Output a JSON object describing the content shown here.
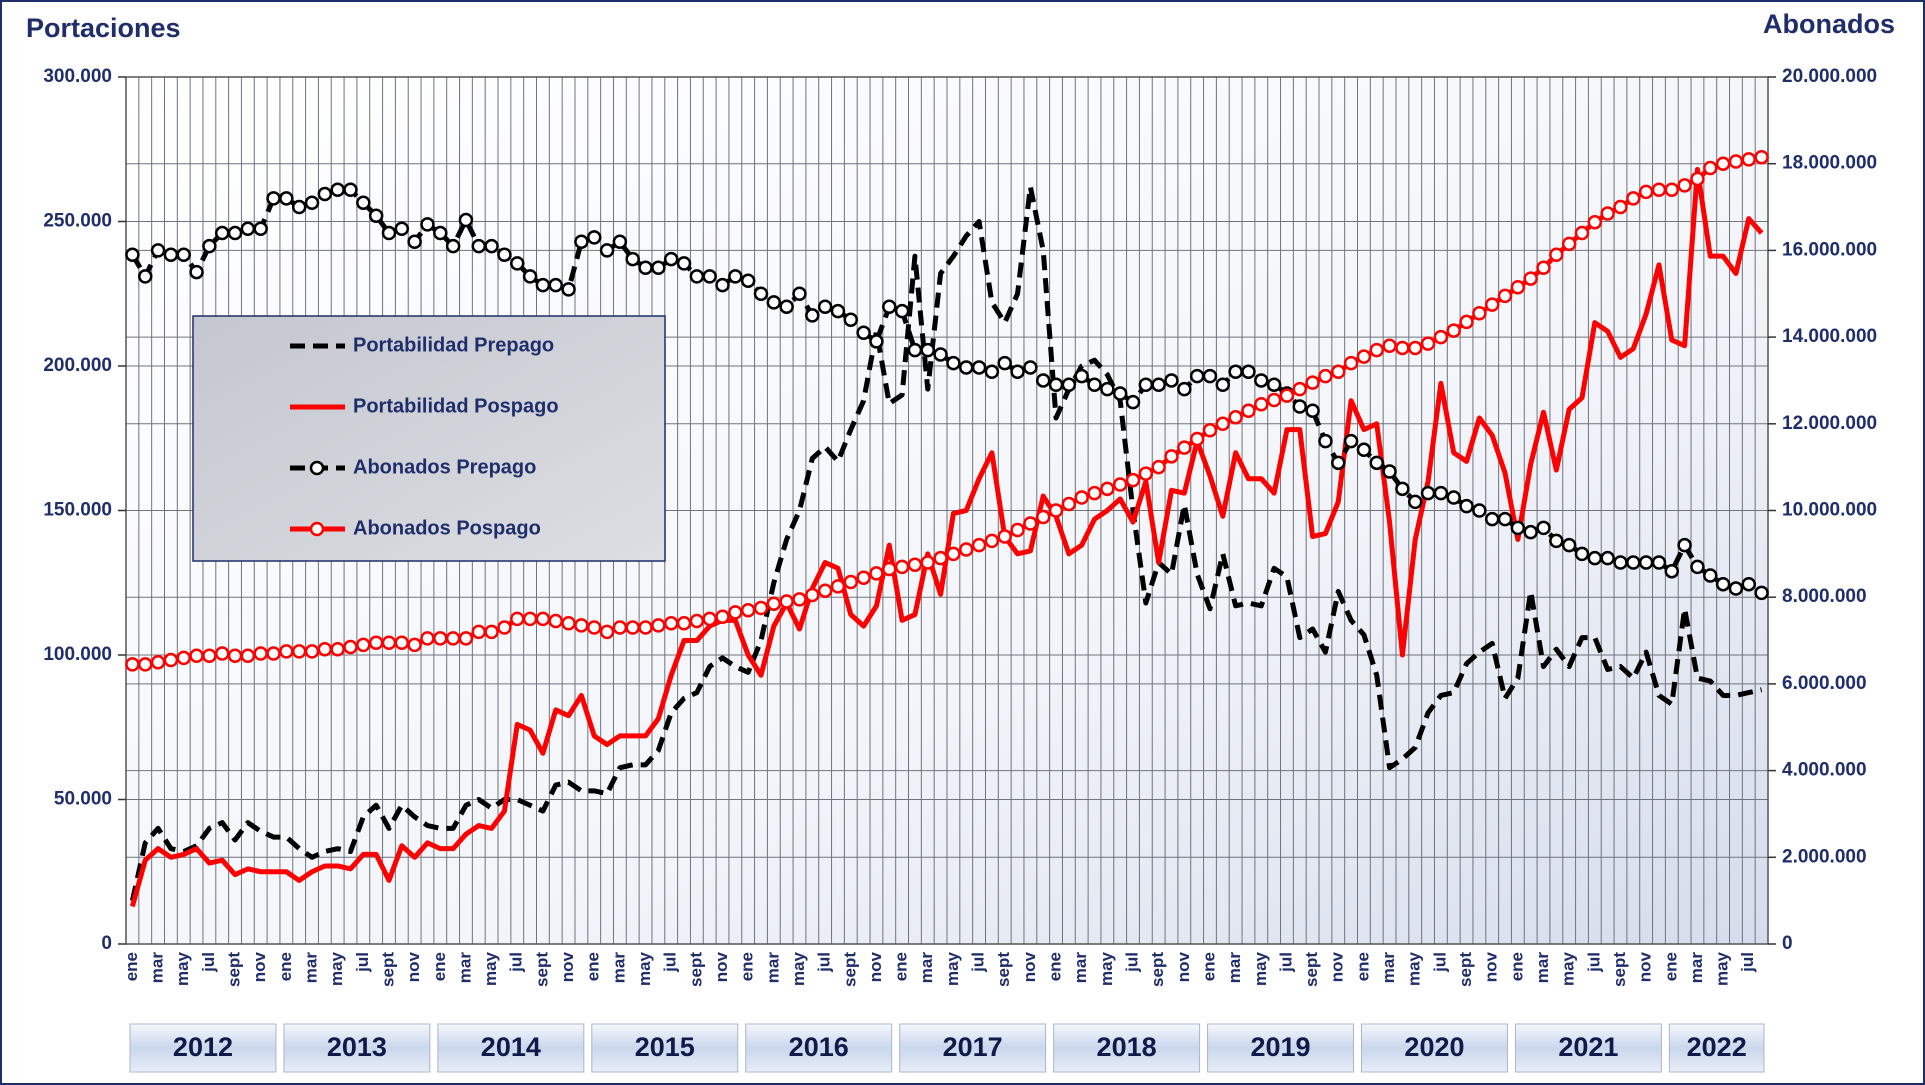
{
  "chart_data": {
    "type": "line",
    "ylabel": "Portaciones",
    "y2label": "Abonados",
    "categories": [
      "ene",
      null,
      "mar",
      null,
      "may",
      null,
      "jul",
      null,
      "sept",
      null,
      "nov",
      null,
      "ene",
      null,
      "mar",
      null,
      "may",
      null,
      "jul",
      null,
      "sept",
      null,
      "nov",
      null,
      "ene",
      null,
      "mar",
      null,
      "may",
      null,
      "jul",
      null,
      "sept",
      null,
      "nov",
      null,
      "ene",
      null,
      "mar",
      null,
      "may",
      null,
      "jul",
      null,
      "sept",
      null,
      "nov",
      null,
      "ene",
      null,
      "mar",
      null,
      "may",
      null,
      "jul",
      null,
      "sept",
      null,
      "nov",
      null,
      "ene",
      null,
      "mar",
      null,
      "may",
      null,
      "jul",
      null,
      "sept",
      null,
      "nov",
      null,
      "ene",
      null,
      "mar",
      null,
      "may",
      null,
      "jul",
      null,
      "sept",
      null,
      "nov",
      null,
      "ene",
      null,
      "mar",
      null,
      "may",
      null,
      "jul",
      null,
      "sept",
      null,
      "nov",
      null,
      "ene",
      null,
      "mar",
      null,
      "may",
      null,
      "jul",
      null,
      "sept",
      null,
      "nov",
      null,
      "ene",
      null,
      "mar",
      null,
      "may",
      null,
      "jul",
      null,
      "sept",
      null,
      "nov",
      null,
      "ene",
      null,
      "mar",
      null,
      "may",
      null,
      "jul",
      null
    ],
    "x_groups": [
      "2012",
      "2013",
      "2014",
      "2015",
      "2016",
      "2017",
      "2018",
      "2019",
      "2020",
      "2021",
      "2022"
    ],
    "ylim": [
      0,
      300000
    ],
    "yticks": [
      0,
      {
        "value": 50000,
        "label": "50.000"
      },
      {
        "value": 100000,
        "label": "100.000"
      },
      {
        "value": 150000,
        "label": "150.000"
      },
      {
        "value": 200000,
        "label": "200.000"
      },
      {
        "value": 250000,
        "label": "250.000"
      },
      {
        "value": 300000,
        "label": "300.000"
      }
    ],
    "y2lim": [
      0,
      20000000
    ],
    "y2ticks": [
      0,
      {
        "value": 2000000,
        "label": "2.000.000"
      },
      {
        "value": 4000000,
        "label": "4.000.000"
      },
      {
        "value": 6000000,
        "label": "6.000.000"
      },
      {
        "value": 8000000,
        "label": "8.000.000"
      },
      {
        "value": 10000000,
        "label": "10.000.000"
      },
      {
        "value": 12000000,
        "label": "12.000.000"
      },
      {
        "value": 14000000,
        "label": "14.000.000"
      },
      {
        "value": 16000000,
        "label": "16.000.000"
      },
      {
        "value": 18000000,
        "label": "18.000.000"
      },
      {
        "value": 20000000,
        "label": "20.000.000"
      }
    ],
    "grid": true,
    "legend": "upper left",
    "series": [
      {
        "name": "Portabilidad Prepago",
        "color": "#000000",
        "linestyle": "dashed",
        "values": [
          15000,
          35000,
          40000,
          33000,
          32000,
          34000,
          40000,
          42000,
          36000,
          42000,
          39000,
          37000,
          37000,
          33000,
          30000,
          32000,
          33000,
          32000,
          44000,
          48000,
          40000,
          48000,
          44000,
          41000,
          40000,
          40000,
          48000,
          50000,
          47000,
          50000,
          50000,
          48000,
          46000,
          55000,
          56000,
          53000,
          53000,
          52000,
          61000,
          62000,
          62000,
          67000,
          80000,
          85000,
          87000,
          96000,
          99000,
          96000,
          94000,
          105000,
          125000,
          140000,
          150000,
          168000,
          172000,
          167000,
          178000,
          188000,
          212000,
          187000,
          190000,
          238000,
          192000,
          232000,
          238000,
          245000,
          250000,
          222000,
          215000,
          225000,
          262000,
          240000,
          182000,
          192000,
          200000,
          202000,
          197000,
          188000,
          150000,
          118000,
          132000,
          128000,
          152000,
          128000,
          116000,
          135000,
          117000,
          118000,
          117000,
          130000,
          127000,
          106000,
          109000,
          101000,
          122000,
          112000,
          107000,
          93000,
          61000,
          64000,
          68000,
          80000,
          86000,
          87000,
          97000,
          101000,
          104000,
          85000,
          92000,
          122000,
          96000,
          102000,
          96000,
          106000,
          106000,
          95000,
          96000,
          92000,
          101000,
          86000,
          83000,
          116000,
          92000,
          91000,
          86000,
          86000,
          87000,
          88000
        ]
      },
      {
        "name": "Portabilidad Pospago",
        "color": "#ff0000",
        "linestyle": "solid",
        "values": [
          13000,
          29000,
          33000,
          30000,
          31000,
          33000,
          28000,
          29000,
          24000,
          26000,
          25000,
          25000,
          25000,
          22000,
          25000,
          27000,
          27000,
          26000,
          31000,
          31000,
          22000,
          34000,
          30000,
          35000,
          33000,
          33000,
          38000,
          41000,
          40000,
          46000,
          76000,
          74000,
          66000,
          81000,
          79000,
          86000,
          72000,
          69000,
          72000,
          72000,
          72000,
          78000,
          93000,
          105000,
          105000,
          110000,
          112000,
          112000,
          100000,
          93000,
          110000,
          118000,
          109000,
          123000,
          132000,
          130000,
          114000,
          110000,
          117000,
          138000,
          112000,
          114000,
          135000,
          121000,
          149000,
          150000,
          161000,
          170000,
          141000,
          135000,
          136000,
          155000,
          148000,
          135000,
          138000,
          147000,
          150000,
          154000,
          146000,
          160000,
          132000,
          157000,
          156000,
          174000,
          162000,
          148000,
          170000,
          161000,
          161000,
          156000,
          178000,
          178000,
          141000,
          142000,
          153000,
          188000,
          178000,
          180000,
          146000,
          100000,
          140000,
          160000,
          194000,
          170000,
          167000,
          182000,
          176000,
          163000,
          140000,
          166000,
          184000,
          164000,
          185000,
          189000,
          215000,
          212000,
          203000,
          206000,
          218000,
          235000,
          209000,
          207000,
          268000,
          238000,
          238000,
          232000,
          251000,
          246000
        ]
      },
      {
        "name": "Abonados Prepago",
        "color": "#000000",
        "linestyle": "dashed",
        "marker": "circle",
        "axis": "y2",
        "values": [
          15900000,
          15400000,
          16000000,
          15900000,
          15900000,
          15500000,
          16100000,
          16400000,
          16400000,
          16500000,
          16500000,
          17200000,
          17200000,
          17000000,
          17100000,
          17300000,
          17400000,
          17400000,
          17100000,
          16800000,
          16400000,
          16500000,
          16200000,
          16600000,
          16400000,
          16100000,
          16700000,
          16100000,
          16100000,
          15900000,
          15700000,
          15400000,
          15200000,
          15200000,
          15100000,
          16200000,
          16300000,
          16000000,
          16200000,
          15800000,
          15600000,
          15600000,
          15800000,
          15700000,
          15400000,
          15400000,
          15200000,
          15400000,
          15300000,
          15000000,
          14800000,
          14700000,
          15000000,
          14500000,
          14700000,
          14600000,
          14400000,
          14100000,
          13900000,
          14700000,
          14600000,
          13700000,
          13700000,
          13600000,
          13400000,
          13300000,
          13300000,
          13200000,
          13400000,
          13200000,
          13300000,
          13000000,
          12900000,
          12900000,
          13100000,
          12900000,
          12800000,
          12700000,
          12500000,
          12900000,
          12900000,
          13000000,
          12800000,
          13100000,
          13100000,
          12900000,
          13200000,
          13200000,
          13000000,
          12900000,
          12700000,
          12400000,
          12300000,
          11600000,
          11100000,
          11600000,
          11400000,
          11100000,
          10900000,
          10500000,
          10200000,
          10400000,
          10400000,
          10300000,
          10100000,
          10000000,
          9800000,
          9800000,
          9600000,
          9500000,
          9600000,
          9300000,
          9200000,
          9000000,
          8900000,
          8900000,
          8800000,
          8800000,
          8800000,
          8800000,
          8600000,
          9200000,
          8700000,
          8500000,
          8300000,
          8200000,
          8300000,
          8100000
        ]
      },
      {
        "name": "Abonados Pospago",
        "color": "#ff0000",
        "linestyle": "solid",
        "marker": "circle",
        "axis": "y2",
        "values": [
          6450000,
          6450000,
          6500000,
          6550000,
          6600000,
          6650000,
          6650000,
          6700000,
          6650000,
          6650000,
          6700000,
          6700000,
          6750000,
          6750000,
          6750000,
          6800000,
          6800000,
          6850000,
          6900000,
          6950000,
          6950000,
          6950000,
          6900000,
          7050000,
          7050000,
          7050000,
          7050000,
          7200000,
          7200000,
          7300000,
          7500000,
          7500000,
          7500000,
          7450000,
          7400000,
          7350000,
          7300000,
          7200000,
          7300000,
          7300000,
          7300000,
          7350000,
          7400000,
          7400000,
          7450000,
          7500000,
          7550000,
          7650000,
          7700000,
          7750000,
          7850000,
          7900000,
          7950000,
          8050000,
          8150000,
          8250000,
          8350000,
          8450000,
          8550000,
          8650000,
          8700000,
          8750000,
          8800000,
          8900000,
          9000000,
          9100000,
          9200000,
          9300000,
          9400000,
          9550000,
          9700000,
          9850000,
          10000000,
          10150000,
          10300000,
          10400000,
          10500000,
          10600000,
          10700000,
          10850000,
          11000000,
          11250000,
          11450000,
          11650000,
          11850000,
          12000000,
          12150000,
          12300000,
          12450000,
          12550000,
          12650000,
          12800000,
          12950000,
          13100000,
          13200000,
          13400000,
          13550000,
          13700000,
          13800000,
          13750000,
          13750000,
          13850000,
          14000000,
          14150000,
          14350000,
          14550000,
          14750000,
          14950000,
          15150000,
          15350000,
          15600000,
          15900000,
          16150000,
          16400000,
          16650000,
          16850000,
          17000000,
          17200000,
          17350000,
          17400000,
          17400000,
          17500000,
          17650000,
          17900000,
          18000000,
          18050000,
          18100000,
          18150000
        ]
      }
    ]
  }
}
